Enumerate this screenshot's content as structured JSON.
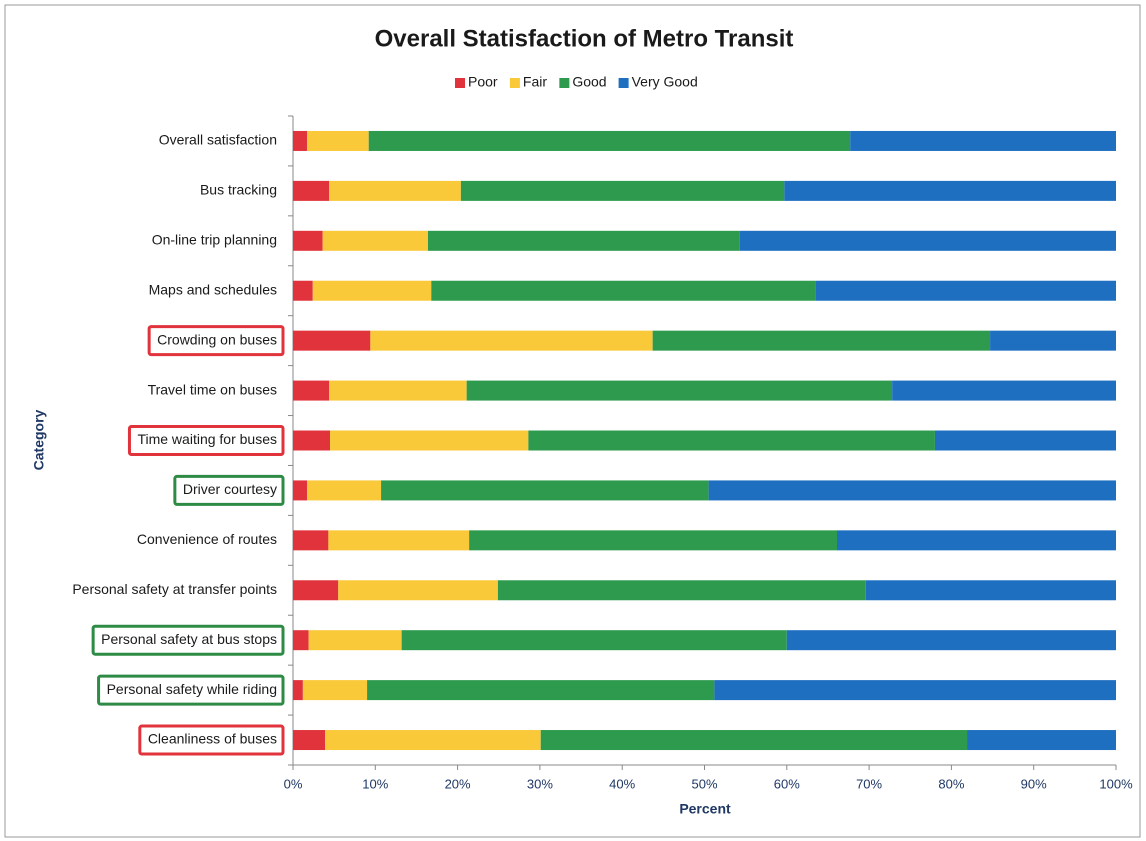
{
  "chart_data": {
    "type": "stacked_bar_horizontal",
    "title": "Overall Statisfaction of Metro Transit",
    "x_label": "Percent",
    "y_label": "Category",
    "categories": [
      "Overall satisfaction",
      "Bus tracking",
      "On-line trip planning",
      "Maps and schedules",
      "Crowding on buses",
      "Travel time on buses",
      "Time waiting for buses",
      "Driver courtesy",
      "Convenience of routes",
      "Personal safety at transfer points",
      "Personal safety at bus stops",
      "Personal safety while riding",
      "Cleanliness of buses"
    ],
    "label_highlight": [
      null,
      null,
      null,
      null,
      "#e0333c",
      null,
      "#e0333c",
      "#2e8b45",
      null,
      null,
      "#2e8b45",
      "#2e8b45",
      "#e0333c"
    ],
    "series": [
      {
        "name": "Poor",
        "color": "#e0333c",
        "values": [
          1.7,
          4.4,
          3.6,
          2.4,
          9.4,
          4.4,
          4.5,
          1.7,
          4.3,
          5.5,
          1.9,
          1.2,
          3.9
        ]
      },
      {
        "name": "Fair",
        "color": "#f9c93a",
        "values": [
          7.5,
          16.0,
          12.8,
          14.4,
          34.3,
          16.7,
          24.1,
          9.0,
          17.1,
          19.4,
          11.3,
          7.8,
          26.2
        ]
      },
      {
        "name": "Good",
        "color": "#2e9a4e",
        "values": [
          58.5,
          39.3,
          37.9,
          46.7,
          41.0,
          51.7,
          49.4,
          39.8,
          44.7,
          44.7,
          46.8,
          42.2,
          51.8
        ]
      },
      {
        "name": "Very Good",
        "color": "#1e6fc0",
        "values": [
          32.3,
          40.3,
          45.7,
          36.5,
          15.3,
          27.2,
          22.0,
          49.5,
          33.9,
          30.4,
          40.0,
          48.8,
          18.1
        ]
      }
    ],
    "xlim": [
      0,
      100
    ],
    "xticks": [
      {
        "value": 0,
        "label": "0%"
      },
      {
        "value": 10,
        "label": "10%"
      },
      {
        "value": 20,
        "label": "20%"
      },
      {
        "value": 30,
        "label": "30%"
      },
      {
        "value": 40,
        "label": "40%"
      },
      {
        "value": 50,
        "label": "50%"
      },
      {
        "value": 60,
        "label": "60%"
      },
      {
        "value": 70,
        "label": "70%"
      },
      {
        "value": 80,
        "label": "80%"
      },
      {
        "value": 90,
        "label": "90%"
      },
      {
        "value": 100,
        "label": "100%"
      }
    ],
    "legend": "top"
  }
}
